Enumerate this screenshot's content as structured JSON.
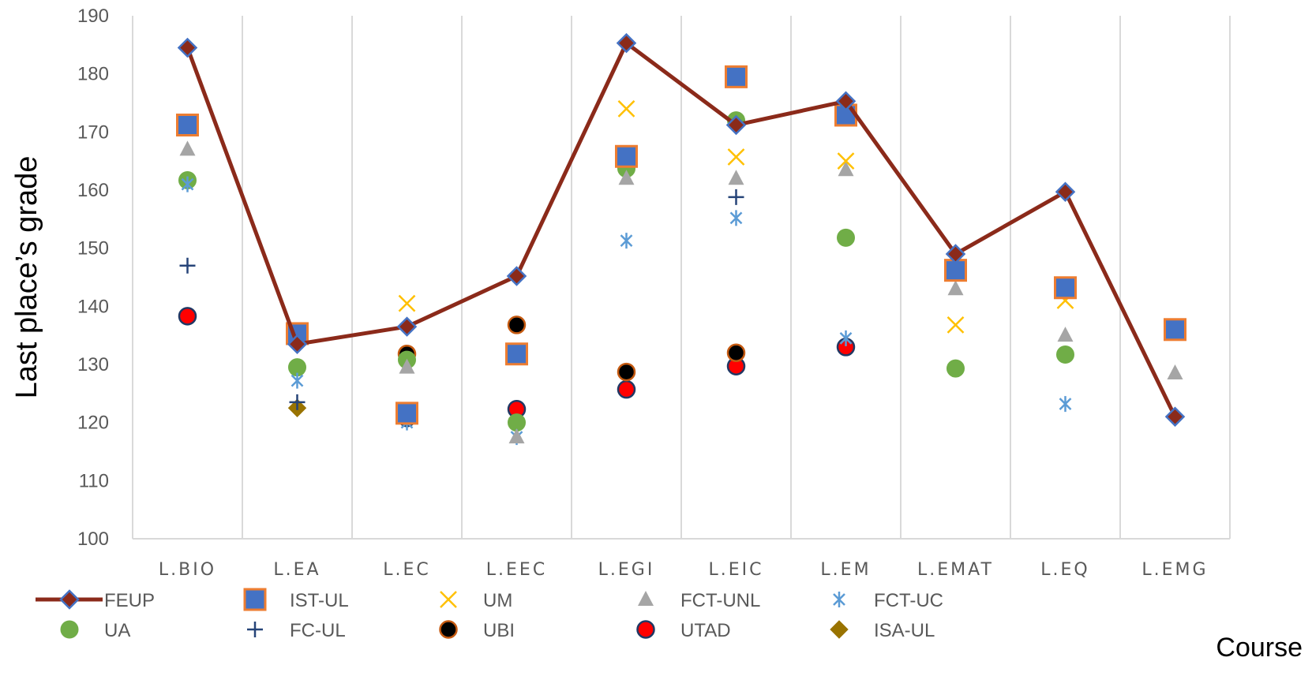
{
  "chart_data": {
    "type": "line",
    "title": "",
    "xlabel": "Course",
    "ylabel": "Last place’s grade",
    "ylim": [
      100,
      190
    ],
    "yticks": [
      100,
      110,
      120,
      130,
      140,
      150,
      160,
      170,
      180,
      190
    ],
    "categories": [
      "L.BIO",
      "L.EA",
      "L.EC",
      "L.EEC",
      "L.EGI",
      "L.EIC",
      "L.EM",
      "L.EMAT",
      "L.EQ",
      "L.EMG"
    ],
    "grid": "vertical",
    "legend_position": "bottom",
    "series": [
      {
        "name": "FEUP",
        "marker": "diamond",
        "line": true,
        "color": "#8B2A1A",
        "marker_fill": "#8B2A1A",
        "marker_edge": "#4472C4",
        "values": [
          184.5,
          133.5,
          136.5,
          145.2,
          185.3,
          171.2,
          175.3,
          149.0,
          159.7,
          121.0
        ]
      },
      {
        "name": "IST-UL",
        "marker": "square",
        "line": false,
        "color": "#4472C4",
        "marker_fill": "#4472C4",
        "marker_edge": "#ED7D31",
        "values": [
          171.2,
          135.3,
          121.6,
          131.8,
          165.8,
          179.5,
          172.9,
          146.2,
          143.2,
          136.0
        ]
      },
      {
        "name": "UM",
        "marker": "x",
        "line": false,
        "color": "#FFC000",
        "values": [
          171.2,
          null,
          140.5,
          null,
          174.0,
          165.7,
          165.0,
          136.8,
          141.0,
          null
        ]
      },
      {
        "name": "FCT-UNL",
        "marker": "triangle",
        "line": false,
        "color": "#A5A5A5",
        "values": [
          167.0,
          null,
          129.5,
          117.5,
          162.0,
          162.0,
          163.5,
          143.0,
          135.0,
          128.5
        ]
      },
      {
        "name": "FCT-UC",
        "marker": "asterisk",
        "line": false,
        "color": "#5B9BD5",
        "values": [
          161.0,
          127.2,
          120.0,
          117.5,
          151.3,
          155.2,
          134.5,
          null,
          123.2,
          null
        ]
      },
      {
        "name": "UA",
        "marker": "circle",
        "line": false,
        "color": "#70AD47",
        "values": [
          161.7,
          129.5,
          130.8,
          120.0,
          163.7,
          172.0,
          151.8,
          129.3,
          131.7,
          null
        ]
      },
      {
        "name": "FC-UL",
        "marker": "plus",
        "line": false,
        "color": "#264478",
        "values": [
          147.0,
          123.5,
          null,
          null,
          null,
          158.8,
          null,
          null,
          null,
          null
        ]
      },
      {
        "name": "UBI",
        "marker": "circle",
        "line": false,
        "color": "#000000",
        "marker_edge": "#C55A11",
        "values": [
          null,
          null,
          131.8,
          136.8,
          128.7,
          132.0,
          null,
          null,
          null,
          null
        ]
      },
      {
        "name": "UTAD",
        "marker": "circle",
        "line": false,
        "color": "#FF0000",
        "marker_edge": "#203864",
        "values": [
          138.3,
          null,
          120.8,
          122.3,
          125.7,
          129.7,
          133.0,
          null,
          null,
          null
        ]
      },
      {
        "name": "ISA-UL",
        "marker": "diamond",
        "line": false,
        "color": "#997300",
        "values": [
          null,
          122.5,
          null,
          null,
          null,
          null,
          null,
          null,
          null,
          null
        ]
      }
    ]
  }
}
